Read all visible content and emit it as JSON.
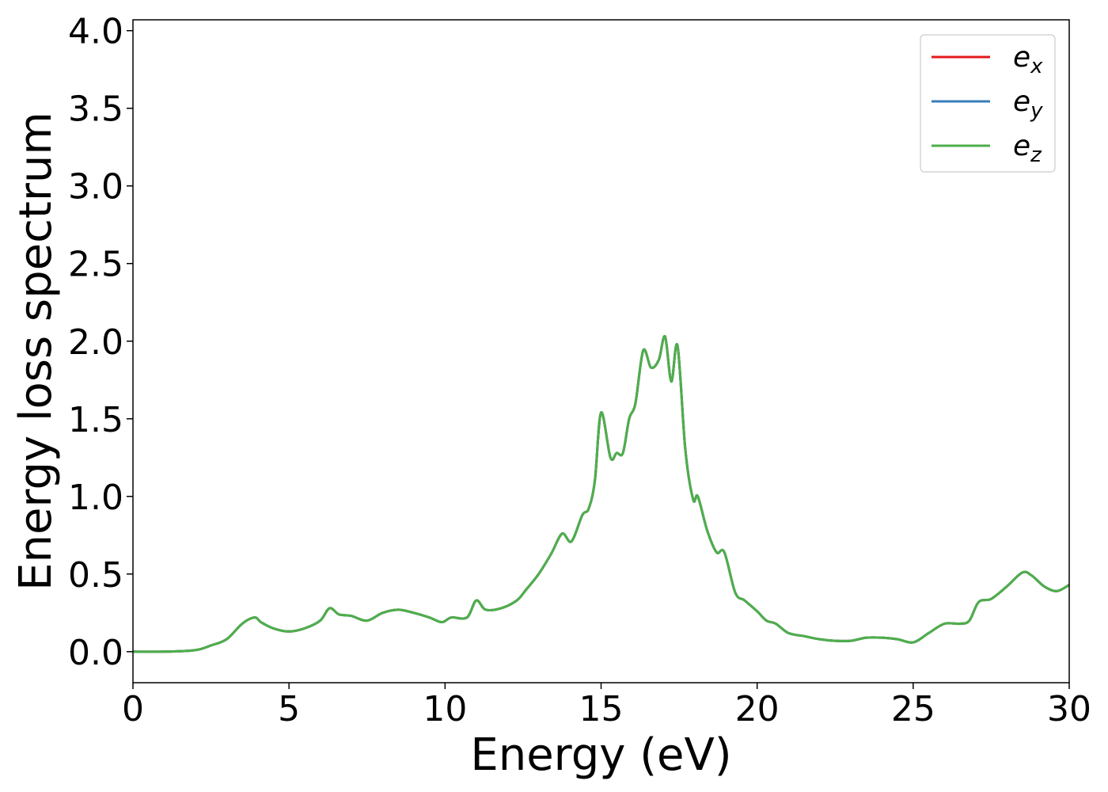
{
  "chart_data": {
    "type": "line",
    "xlabel": "Energy (eV)",
    "ylabel": "Energy loss spectrum",
    "xlim": [
      0,
      30
    ],
    "ylim": [
      -0.2,
      4.07
    ],
    "xticks": [
      0,
      5,
      10,
      15,
      20,
      25,
      30
    ],
    "xtick_labels": [
      "0",
      "5",
      "10",
      "15",
      "20",
      "25",
      "30"
    ],
    "yticks": [
      0.0,
      0.5,
      1.0,
      1.5,
      2.0,
      2.5,
      3.0,
      3.5,
      4.0
    ],
    "ytick_labels": [
      "0.0",
      "0.5",
      "1.0",
      "1.5",
      "2.0",
      "2.5",
      "3.0",
      "3.5",
      "4.0"
    ],
    "grid": false,
    "legend_position": "top-right",
    "x": [
      0,
      1,
      2,
      2.5,
      3,
      3.5,
      3.9,
      4.1,
      4.5,
      5,
      5.5,
      6,
      6.3,
      6.6,
      7,
      7.5,
      8,
      8.5,
      9,
      9.5,
      9.9,
      10.2,
      10.7,
      11,
      11.3,
      11.8,
      12.3,
      12.6,
      13,
      13.4,
      13.75,
      14.05,
      14.4,
      14.6,
      14.8,
      15,
      15.3,
      15.5,
      15.7,
      15.9,
      16.1,
      16.35,
      16.6,
      16.85,
      17.05,
      17.25,
      17.45,
      17.7,
      17.95,
      18.1,
      18.4,
      18.7,
      18.95,
      19.3,
      19.6,
      20,
      20.3,
      20.6,
      21,
      21.5,
      22,
      22.5,
      23,
      23.5,
      24,
      24.5,
      25,
      25.5,
      26,
      26.5,
      26.8,
      27.1,
      27.5,
      28,
      28.5,
      28.8,
      29.2,
      29.6,
      30
    ],
    "series": [
      {
        "name": "e_x",
        "label_base": "e",
        "label_sub": "x",
        "color": "#e41a1c",
        "y": [
          0.0,
          0.0,
          0.01,
          0.04,
          0.08,
          0.18,
          0.22,
          0.19,
          0.15,
          0.13,
          0.15,
          0.2,
          0.28,
          0.24,
          0.23,
          0.2,
          0.25,
          0.27,
          0.25,
          0.22,
          0.19,
          0.22,
          0.22,
          0.33,
          0.27,
          0.28,
          0.33,
          0.4,
          0.5,
          0.63,
          0.76,
          0.71,
          0.88,
          0.92,
          1.1,
          1.54,
          1.25,
          1.28,
          1.28,
          1.5,
          1.6,
          1.94,
          1.83,
          1.88,
          2.03,
          1.74,
          1.97,
          1.3,
          0.98,
          1.0,
          0.78,
          0.64,
          0.64,
          0.38,
          0.33,
          0.26,
          0.2,
          0.18,
          0.12,
          0.1,
          0.08,
          0.07,
          0.07,
          0.09,
          0.09,
          0.08,
          0.06,
          0.12,
          0.18,
          0.18,
          0.2,
          0.32,
          0.34,
          0.42,
          0.51,
          0.49,
          0.42,
          0.39,
          0.43
        ]
      },
      {
        "name": "e_y",
        "label_base": "e",
        "label_sub": "y",
        "color": "#377eb8",
        "y": [
          0.0,
          0.0,
          0.01,
          0.04,
          0.08,
          0.18,
          0.22,
          0.19,
          0.15,
          0.13,
          0.15,
          0.2,
          0.28,
          0.24,
          0.23,
          0.2,
          0.25,
          0.27,
          0.25,
          0.22,
          0.19,
          0.22,
          0.22,
          0.33,
          0.27,
          0.28,
          0.33,
          0.4,
          0.5,
          0.63,
          0.76,
          0.71,
          0.88,
          0.92,
          1.1,
          1.54,
          1.25,
          1.28,
          1.28,
          1.5,
          1.6,
          1.94,
          1.83,
          1.88,
          2.03,
          1.74,
          1.97,
          1.3,
          0.98,
          1.0,
          0.78,
          0.64,
          0.64,
          0.38,
          0.33,
          0.26,
          0.2,
          0.18,
          0.12,
          0.1,
          0.08,
          0.07,
          0.07,
          0.09,
          0.09,
          0.08,
          0.06,
          0.12,
          0.18,
          0.18,
          0.2,
          0.32,
          0.34,
          0.42,
          0.51,
          0.49,
          0.42,
          0.39,
          0.43
        ]
      },
      {
        "name": "e_z",
        "label_base": "e",
        "label_sub": "z",
        "color": "#4daf4a",
        "y": [
          0.0,
          0.0,
          0.01,
          0.04,
          0.08,
          0.18,
          0.22,
          0.19,
          0.15,
          0.13,
          0.15,
          0.2,
          0.28,
          0.24,
          0.23,
          0.2,
          0.25,
          0.27,
          0.25,
          0.22,
          0.19,
          0.22,
          0.22,
          0.33,
          0.27,
          0.28,
          0.33,
          0.4,
          0.5,
          0.63,
          0.76,
          0.71,
          0.88,
          0.92,
          1.1,
          1.54,
          1.25,
          1.28,
          1.28,
          1.5,
          1.6,
          1.94,
          1.83,
          1.88,
          2.03,
          1.74,
          1.97,
          1.3,
          0.98,
          1.0,
          0.78,
          0.64,
          0.64,
          0.38,
          0.33,
          0.26,
          0.2,
          0.18,
          0.12,
          0.1,
          0.08,
          0.07,
          0.07,
          0.09,
          0.09,
          0.08,
          0.06,
          0.12,
          0.18,
          0.18,
          0.2,
          0.32,
          0.34,
          0.42,
          0.51,
          0.49,
          0.42,
          0.39,
          0.43
        ]
      }
    ]
  }
}
